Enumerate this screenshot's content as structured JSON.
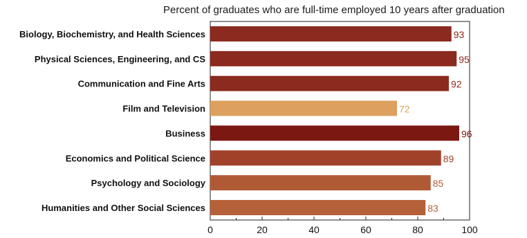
{
  "chart_data": {
    "type": "bar",
    "orientation": "horizontal",
    "title": "Percent of graduates who are full-time employed 10 years after graduation",
    "categories": [
      "Biology, Biochemistry, and Health Sciences",
      "Physical Sciences, Engineering, and CS",
      "Communication and Fine Arts",
      "Film and Television",
      "Business",
      "Economics and Political Science",
      "Psychology and Sociology",
      "Humanities and Other Social Sciences"
    ],
    "values": [
      93,
      95,
      92,
      72,
      96,
      89,
      85,
      83
    ],
    "colors": [
      "#8b2a1e",
      "#8b2a1e",
      "#8b2a1e",
      "#dda05e",
      "#7b1812",
      "#a0422a",
      "#b05a35",
      "#b56038"
    ],
    "xlabel": "",
    "ylabel": "",
    "xlim": [
      0,
      100
    ],
    "xticks": [
      0,
      20,
      40,
      60,
      80,
      100
    ],
    "grid": false
  }
}
